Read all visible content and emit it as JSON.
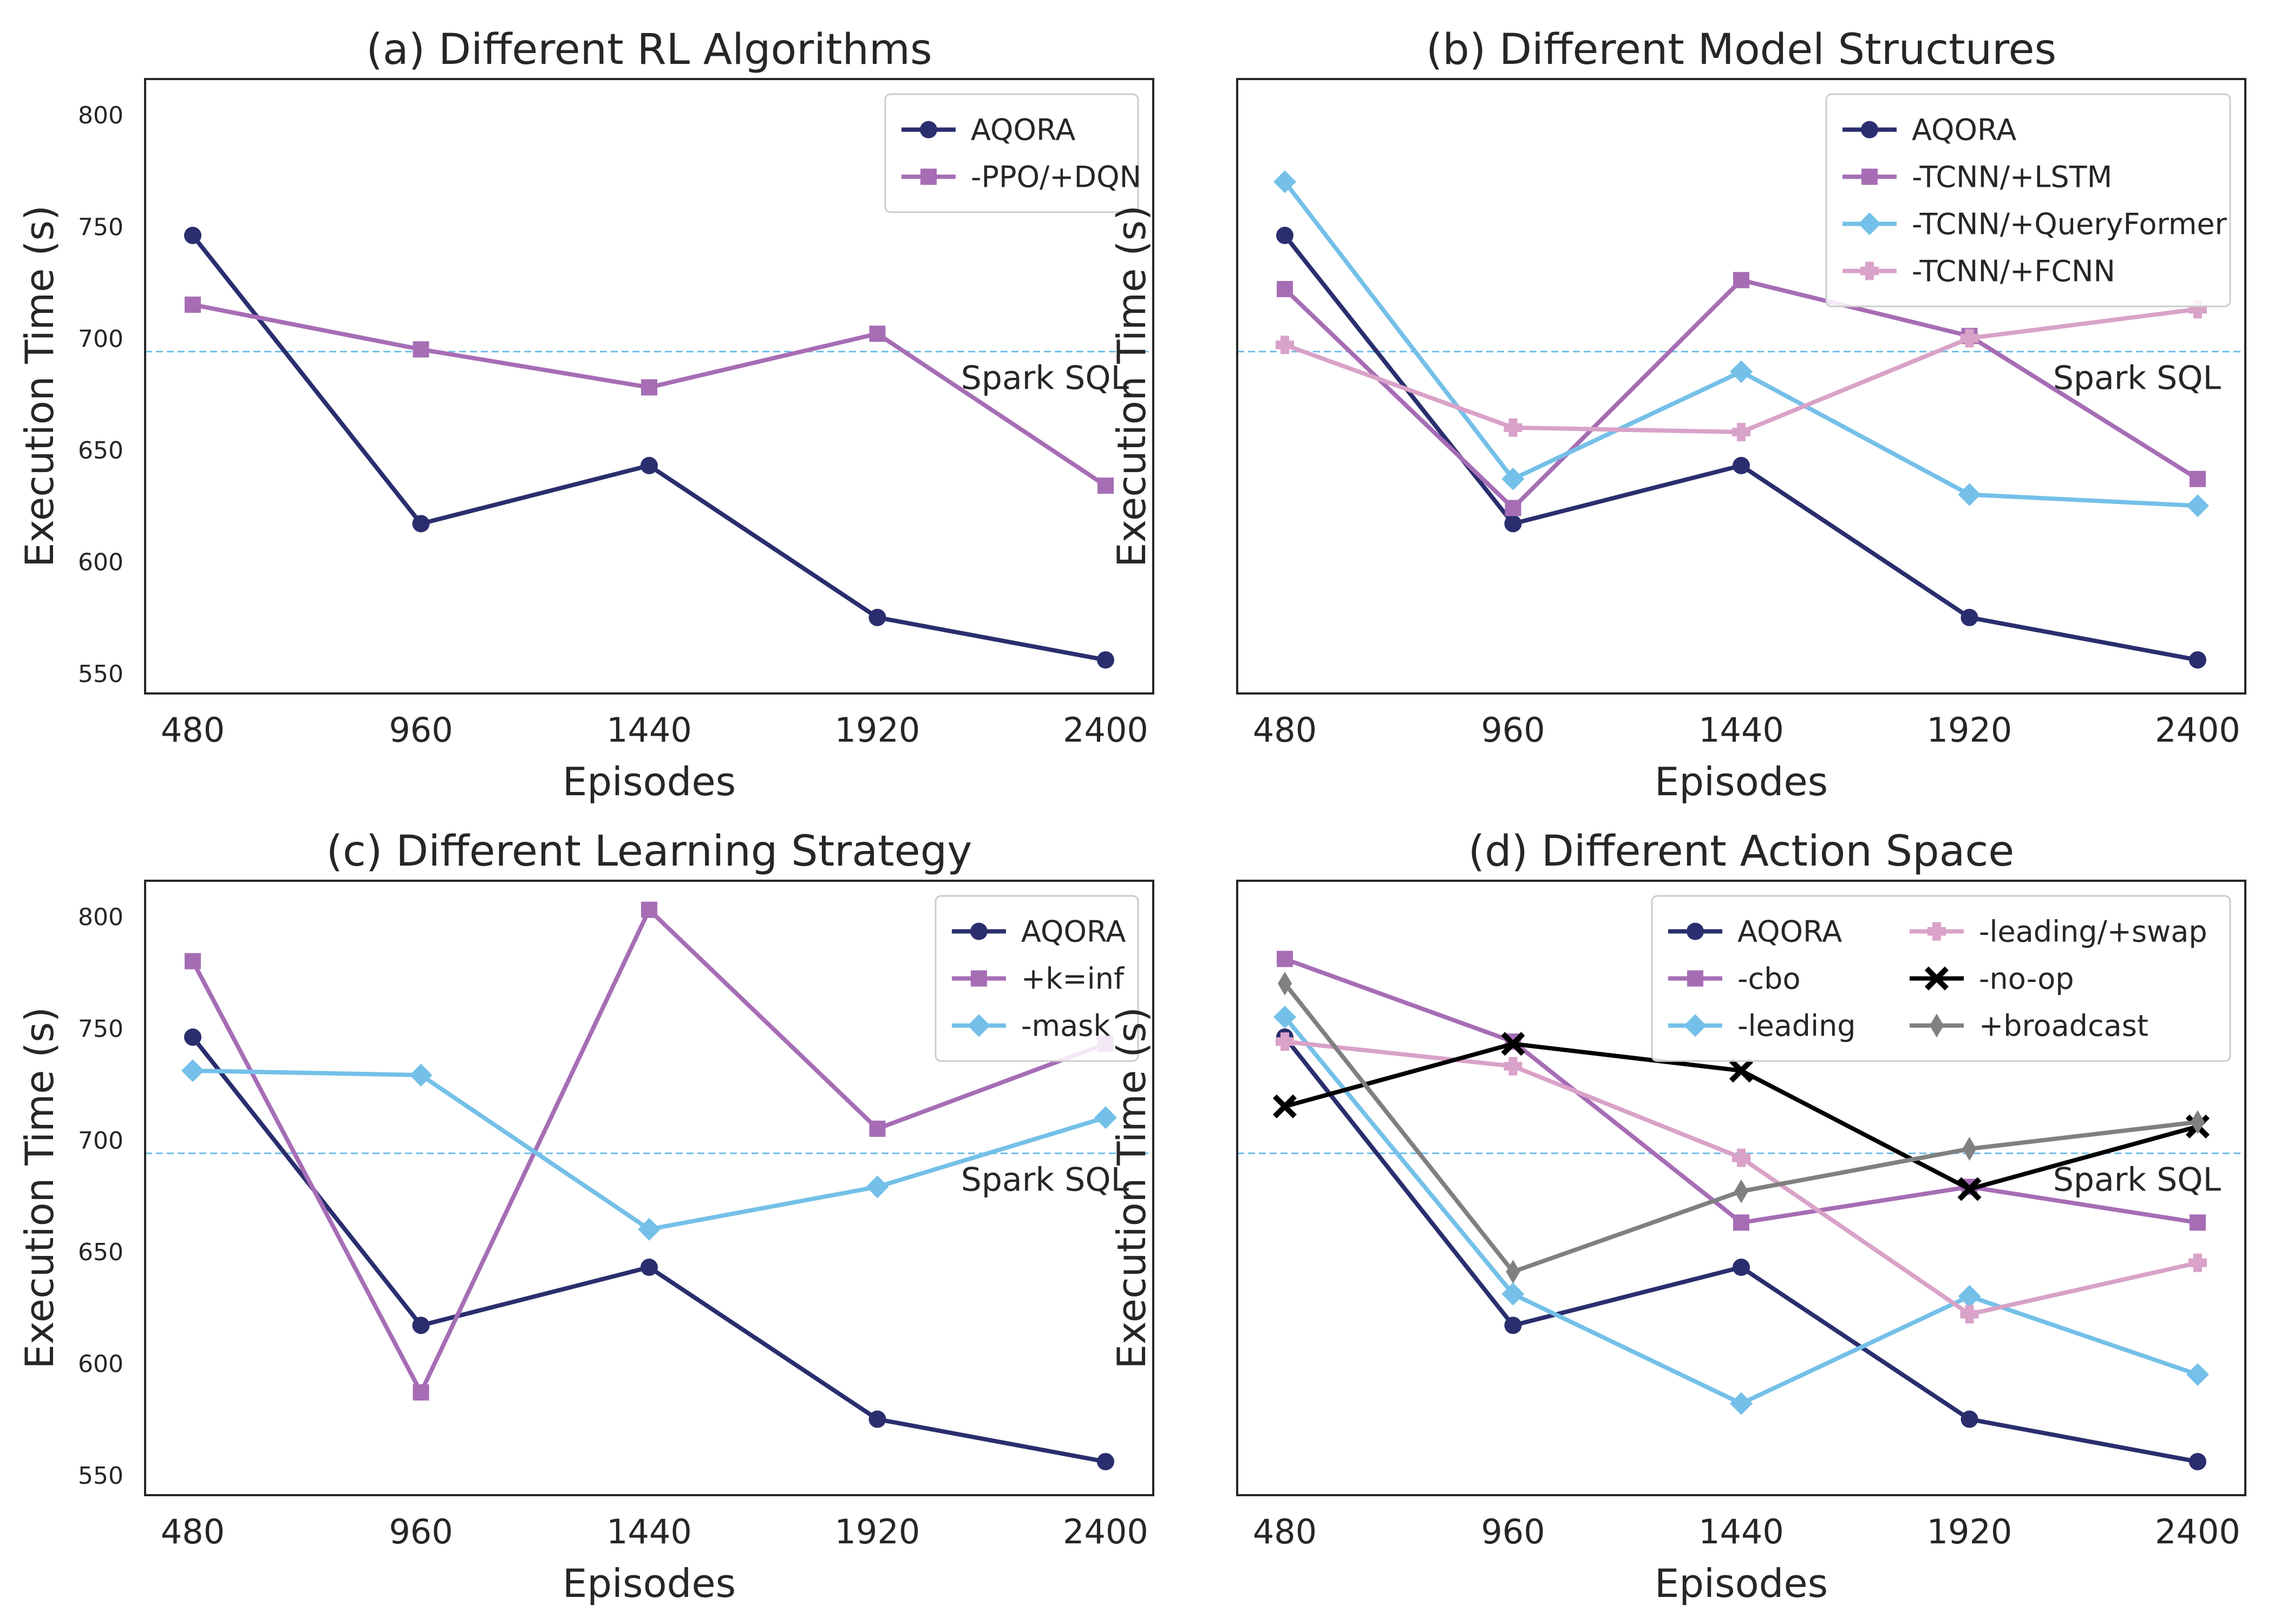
{
  "chart_data": [
    {
      "type": "line",
      "title": "(a) Different RL Algorithms",
      "xlabel": "Episodes",
      "ylabel": "Execution Time (s)",
      "categories": [
        "480",
        "960",
        "1440",
        "1920",
        "2400"
      ],
      "ylim": [
        541,
        816
      ],
      "yticks": [
        "550",
        "600",
        "650",
        "700",
        "750",
        "800"
      ],
      "show_yticks": true,
      "grid": false,
      "legend_position": "top-right",
      "legend_columns": 1,
      "reference_line": {
        "label": "Spark SQL",
        "value": 694,
        "color": "#74c0e8"
      },
      "series": [
        {
          "name": "AQORA",
          "color": "#2a2e6e",
          "marker": "circle",
          "values": [
            746,
            617,
            643,
            575,
            556
          ]
        },
        {
          "name": "-PPO/+DQN",
          "color": "#a66db5",
          "marker": "square",
          "values": [
            715,
            695,
            678,
            702,
            634
          ]
        }
      ]
    },
    {
      "type": "line",
      "title": "(b) Different Model Structures",
      "xlabel": "Episodes",
      "ylabel": "Execution Time (s)",
      "categories": [
        "480",
        "960",
        "1440",
        "1920",
        "2400"
      ],
      "ylim": [
        541,
        816
      ],
      "yticks": [],
      "show_yticks": false,
      "grid": false,
      "legend_position": "top-right",
      "legend_columns": 1,
      "reference_line": {
        "label": "Spark SQL",
        "value": 694,
        "color": "#74c0e8"
      },
      "series": [
        {
          "name": "AQORA",
          "color": "#2a2e6e",
          "marker": "circle",
          "values": [
            746,
            617,
            643,
            575,
            556
          ]
        },
        {
          "name": "-TCNN/+LSTM",
          "color": "#a66db5",
          "marker": "square",
          "values": [
            722,
            624,
            726,
            701,
            637
          ]
        },
        {
          "name": "-TCNN/+QueryFormer",
          "color": "#74c0e8",
          "marker": "diamond",
          "values": [
            770,
            637,
            685,
            630,
            625
          ]
        },
        {
          "name": "-TCNN/+FCNN",
          "color": "#d9a2c8",
          "marker": "plus",
          "values": [
            697,
            660,
            658,
            700,
            713
          ]
        }
      ]
    },
    {
      "type": "line",
      "title": "(c) Different Learning Strategy",
      "xlabel": "Episodes",
      "ylabel": "Execution Time (s)",
      "categories": [
        "480",
        "960",
        "1440",
        "1920",
        "2400"
      ],
      "ylim": [
        541,
        816
      ],
      "yticks": [
        "550",
        "600",
        "650",
        "700",
        "750",
        "800"
      ],
      "show_yticks": true,
      "grid": false,
      "legend_position": "top-right",
      "legend_columns": 1,
      "reference_line": {
        "label": "Spark SQL",
        "value": 694,
        "color": "#74c0e8"
      },
      "series": [
        {
          "name": "AQORA",
          "color": "#2a2e6e",
          "marker": "circle",
          "values": [
            746,
            617,
            643,
            575,
            556
          ]
        },
        {
          "name": "+k=inf",
          "color": "#a66db5",
          "marker": "square",
          "values": [
            780,
            587,
            803,
            705,
            743
          ]
        },
        {
          "name": "-mask",
          "color": "#74c0e8",
          "marker": "diamond",
          "values": [
            731,
            729,
            660,
            679,
            710
          ]
        }
      ]
    },
    {
      "type": "line",
      "title": "(d) Different Action Space",
      "xlabel": "Episodes",
      "ylabel": "Execution Time (s)",
      "categories": [
        "480",
        "960",
        "1440",
        "1920",
        "2400"
      ],
      "ylim": [
        541,
        816
      ],
      "yticks": [],
      "show_yticks": false,
      "grid": false,
      "legend_position": "top-right",
      "legend_columns": 2,
      "reference_line": {
        "label": "Spark SQL",
        "value": 694,
        "color": "#74c0e8"
      },
      "series": [
        {
          "name": "AQORA",
          "color": "#2a2e6e",
          "marker": "circle",
          "values": [
            746,
            617,
            643,
            575,
            556
          ]
        },
        {
          "name": "-cbo",
          "color": "#a66db5",
          "marker": "square",
          "values": [
            781,
            744,
            663,
            679,
            663
          ]
        },
        {
          "name": "-leading",
          "color": "#74c0e8",
          "marker": "diamond",
          "values": [
            755,
            631,
            582,
            630,
            595
          ]
        },
        {
          "name": "-leading/+swap",
          "color": "#d9a2c8",
          "marker": "plus",
          "values": [
            744,
            733,
            692,
            622,
            645
          ]
        },
        {
          "name": "-no-op",
          "color": "#000000",
          "marker": "x",
          "values": [
            715,
            743,
            731,
            678,
            706
          ]
        },
        {
          "name": "+broadcast",
          "color": "#808080",
          "marker": "thin_diamond",
          "values": [
            770,
            641,
            677,
            696,
            708
          ]
        }
      ]
    }
  ]
}
